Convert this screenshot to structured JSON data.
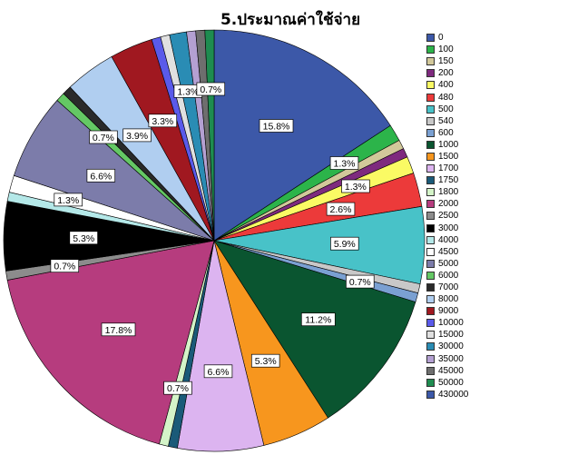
{
  "chart_data": {
    "type": "pie",
    "title": "5.ประมาณค่าใช้จ่าย",
    "legend_position": "right",
    "slices": [
      {
        "label": "0",
        "value": 15.8,
        "color": "#3c58a8",
        "data_label": "15.8%"
      },
      {
        "label": "100",
        "value": 1.3,
        "color": "#2cb44a",
        "data_label": "1.3%"
      },
      {
        "label": "150",
        "value": 0.7,
        "color": "#d2c89a",
        "data_label": ""
      },
      {
        "label": "200",
        "value": 0.7,
        "color": "#7e2a7e",
        "data_label": ""
      },
      {
        "label": "400",
        "value": 1.3,
        "color": "#fafa64",
        "data_label": "1.3%"
      },
      {
        "label": "480",
        "value": 2.6,
        "color": "#ec3a3a",
        "data_label": "2.6%"
      },
      {
        "label": "500",
        "value": 5.9,
        "color": "#48c2c8",
        "data_label": "5.9%"
      },
      {
        "label": "540",
        "value": 0.7,
        "color": "#c8c8c8",
        "data_label": ""
      },
      {
        "label": "600",
        "value": 0.7,
        "color": "#7aa0d2",
        "data_label": "0.7%"
      },
      {
        "label": "1000",
        "value": 11.2,
        "color": "#0a5530",
        "data_label": "11.2%"
      },
      {
        "label": "1500",
        "value": 5.3,
        "color": "#f7961e",
        "data_label": "5.3%"
      },
      {
        "label": "1700",
        "value": 6.6,
        "color": "#dcb4f0",
        "data_label": "6.6%"
      },
      {
        "label": "1750",
        "value": 0.7,
        "color": "#1a5a78",
        "data_label": ""
      },
      {
        "label": "1800",
        "value": 0.7,
        "color": "#d4f4c8",
        "data_label": "0.7%"
      },
      {
        "label": "2000",
        "value": 17.8,
        "color": "#b63c7e",
        "data_label": "17.8%"
      },
      {
        "label": "2500",
        "value": 0.7,
        "color": "#8c8c8c",
        "data_label": "0.7%"
      },
      {
        "label": "3000",
        "value": 5.3,
        "color": "#000000",
        "data_label": "5.3%"
      },
      {
        "label": "4000",
        "value": 0.7,
        "color": "#b4e8e8",
        "data_label": ""
      },
      {
        "label": "4500",
        "value": 1.3,
        "color": "#ffffff",
        "data_label": "1.3%"
      },
      {
        "label": "5000",
        "value": 6.6,
        "color": "#7c7caa",
        "data_label": "6.6%"
      },
      {
        "label": "6000",
        "value": 0.7,
        "color": "#64c864",
        "data_label": "0.7%"
      },
      {
        "label": "7000",
        "value": 0.7,
        "color": "#2a2a2a",
        "data_label": ""
      },
      {
        "label": "8000",
        "value": 3.9,
        "color": "#b0cef0",
        "data_label": "3.9%"
      },
      {
        "label": "9000",
        "value": 3.3,
        "color": "#a01820",
        "data_label": "3.3%"
      },
      {
        "label": "10000",
        "value": 0.7,
        "color": "#5a5aea",
        "data_label": ""
      },
      {
        "label": "15000",
        "value": 0.7,
        "color": "#e0e0e0",
        "data_label": ""
      },
      {
        "label": "30000",
        "value": 1.3,
        "color": "#2a8cb4",
        "data_label": "1.3%"
      },
      {
        "label": "35000",
        "value": 0.7,
        "color": "#b4a0d2",
        "data_label": ""
      },
      {
        "label": "45000",
        "value": 0.7,
        "color": "#6e6e6e",
        "data_label": ""
      },
      {
        "label": "50000",
        "value": 0.7,
        "color": "#1e8c50",
        "data_label": "0.7%"
      },
      {
        "label": "430000",
        "value": 0.0,
        "color": "#3c58a8",
        "data_label": ""
      }
    ]
  }
}
